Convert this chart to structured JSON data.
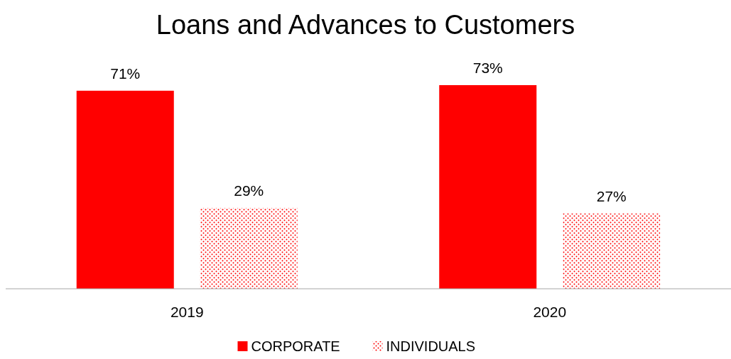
{
  "chart_data": {
    "type": "bar",
    "title": "Loans and Advances to Customers",
    "categories": [
      "2019",
      "2020"
    ],
    "series": [
      {
        "name": "CORPORATE",
        "color": "#ff0000",
        "values": [
          71,
          73
        ],
        "value_labels": [
          "71%",
          "73%"
        ]
      },
      {
        "name": "INDIVIDUALS",
        "color": "#ff0000",
        "values": [
          29,
          27
        ],
        "value_labels": [
          "29%",
          "27%"
        ]
      }
    ],
    "legend": "bottom"
  }
}
